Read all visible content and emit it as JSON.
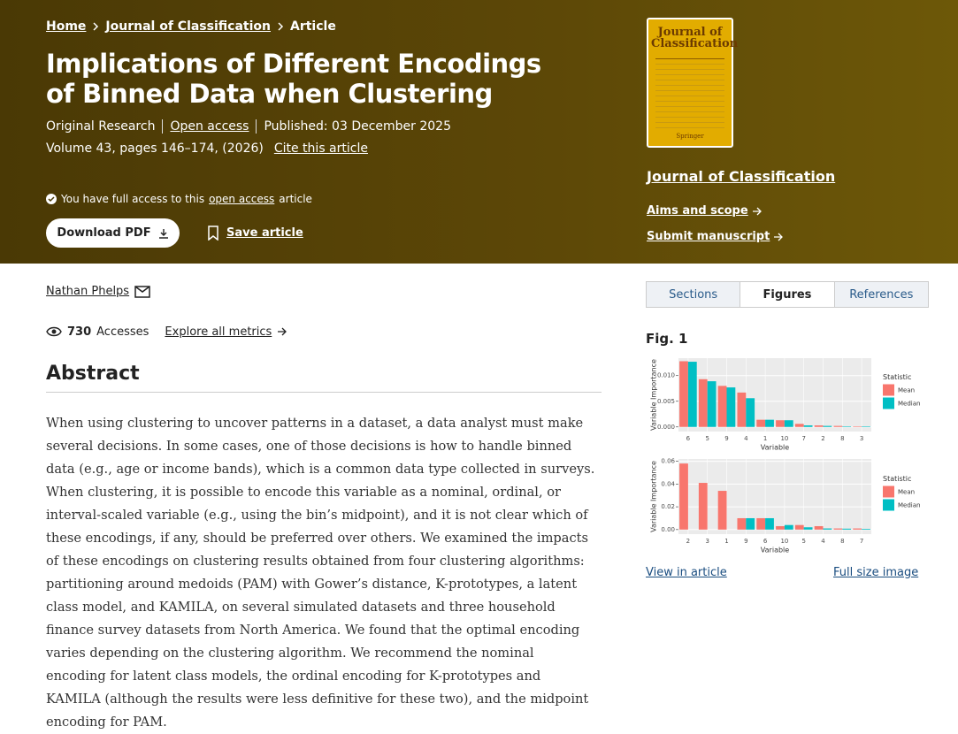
{
  "breadcrumb": [
    "Home",
    "Journal of Classification",
    "Article"
  ],
  "article": {
    "title": "Implications of Different Encodings of Binned Data when Clustering",
    "type": "Original Research",
    "access": "Open access",
    "published": "Published: 03 December 2025",
    "citation": "Volume 43, pages 146–174, (2026)",
    "cite_link": "Cite this article",
    "access_note": {
      "before": "You have full access to this",
      "link": "open access",
      "after": "article"
    },
    "download": "Download PDF",
    "save": "Save article",
    "author": "Nathan Phelps",
    "accesses": {
      "count": 730,
      "label": "Accesses"
    },
    "metrics_link": "Explore all metrics",
    "abstract_heading": "Abstract",
    "abstract": "When using clustering to uncover patterns in a dataset, a data analyst must make several decisions. In some cases, one of those decisions is how to handle binned data (e.g., age or income bands), which is a common data type collected in surveys. When clustering, it is possible to encode this variable as a nominal, ordinal, or interval-scaled variable (e.g., using the bin’s midpoint), and it is not clear which of these encodings, if any, should be preferred over others. We examined the impacts of these encodings on clustering results obtained from four clustering algorithms: partitioning around medoids (PAM) with Gower’s distance, K-prototypes, a latent class model, and KAMILA, on several simulated datasets and three household finance survey datasets from North America. We found that the optimal encoding varies depending on the clustering algorithm. We recommend the nominal encoding for latent class models, the ordinal encoding for K-prototypes and KAMILA (although the results were less definitive for these two), and the midpoint encoding for PAM."
  },
  "journal": {
    "cover_title": "Journal of Classification",
    "cover_publisher": "Springer",
    "name": "Journal of Classification",
    "links": [
      "Aims and scope",
      "Submit manuscript"
    ]
  },
  "tabs": [
    "Sections",
    "Figures",
    "References"
  ],
  "figure": {
    "label": "Fig. 1",
    "view": "View in article",
    "full": "Full size image"
  },
  "chart_data": [
    {
      "type": "bar",
      "x_label": "Variable",
      "y_label": "Variable Importance",
      "legend_title": "Statistic",
      "grid": true,
      "categories": [
        "6",
        "5",
        "9",
        "4",
        "1",
        "10",
        "7",
        "2",
        "8",
        "3"
      ],
      "series": [
        {
          "name": "Mean",
          "color": "#f8766d",
          "values": [
            0.0128,
            0.0093,
            0.008,
            0.0067,
            0.0014,
            0.0013,
            0.0006,
            0.0003,
            0.0002,
            0.0001
          ]
        },
        {
          "name": "Median",
          "color": "#00bfc4",
          "values": [
            0.0127,
            0.0089,
            0.0077,
            0.0056,
            0.0014,
            0.0013,
            0.0003,
            0.0002,
            0.0001,
            0.0001
          ]
        }
      ],
      "ylim": [
        -0.0009,
        0.0134
      ],
      "yticks": [
        {
          "value": 0,
          "label": "0.000"
        },
        {
          "value": 0.005,
          "label": "0.005"
        },
        {
          "value": 0.01,
          "label": "0.010"
        }
      ]
    },
    {
      "type": "bar",
      "x_label": "Variable",
      "y_label": "Variable Importance",
      "legend_title": "Statistic",
      "grid": true,
      "categories": [
        "2",
        "3",
        "1",
        "9",
        "6",
        "10",
        "5",
        "4",
        "8",
        "7"
      ],
      "series": [
        {
          "name": "Mean",
          "color": "#f8766d",
          "values": [
            0.058,
            0.041,
            0.034,
            0.01,
            0.01,
            0.003,
            0.004,
            0.003,
            0.001,
            0.001
          ]
        },
        {
          "name": "Median",
          "color": "#00bfc4",
          "values": [
            0,
            0,
            0,
            0.01,
            0.01,
            0.004,
            0.002,
            0.001,
            0.0008,
            0.0006
          ]
        }
      ],
      "ylim": [
        -0.004,
        0.062
      ],
      "yticks": [
        {
          "value": 0,
          "label": "0.00"
        },
        {
          "value": 0.02,
          "label": "0.02"
        },
        {
          "value": 0.04,
          "label": "0.04"
        },
        {
          "value": 0.06,
          "label": "0.06"
        }
      ]
    }
  ]
}
